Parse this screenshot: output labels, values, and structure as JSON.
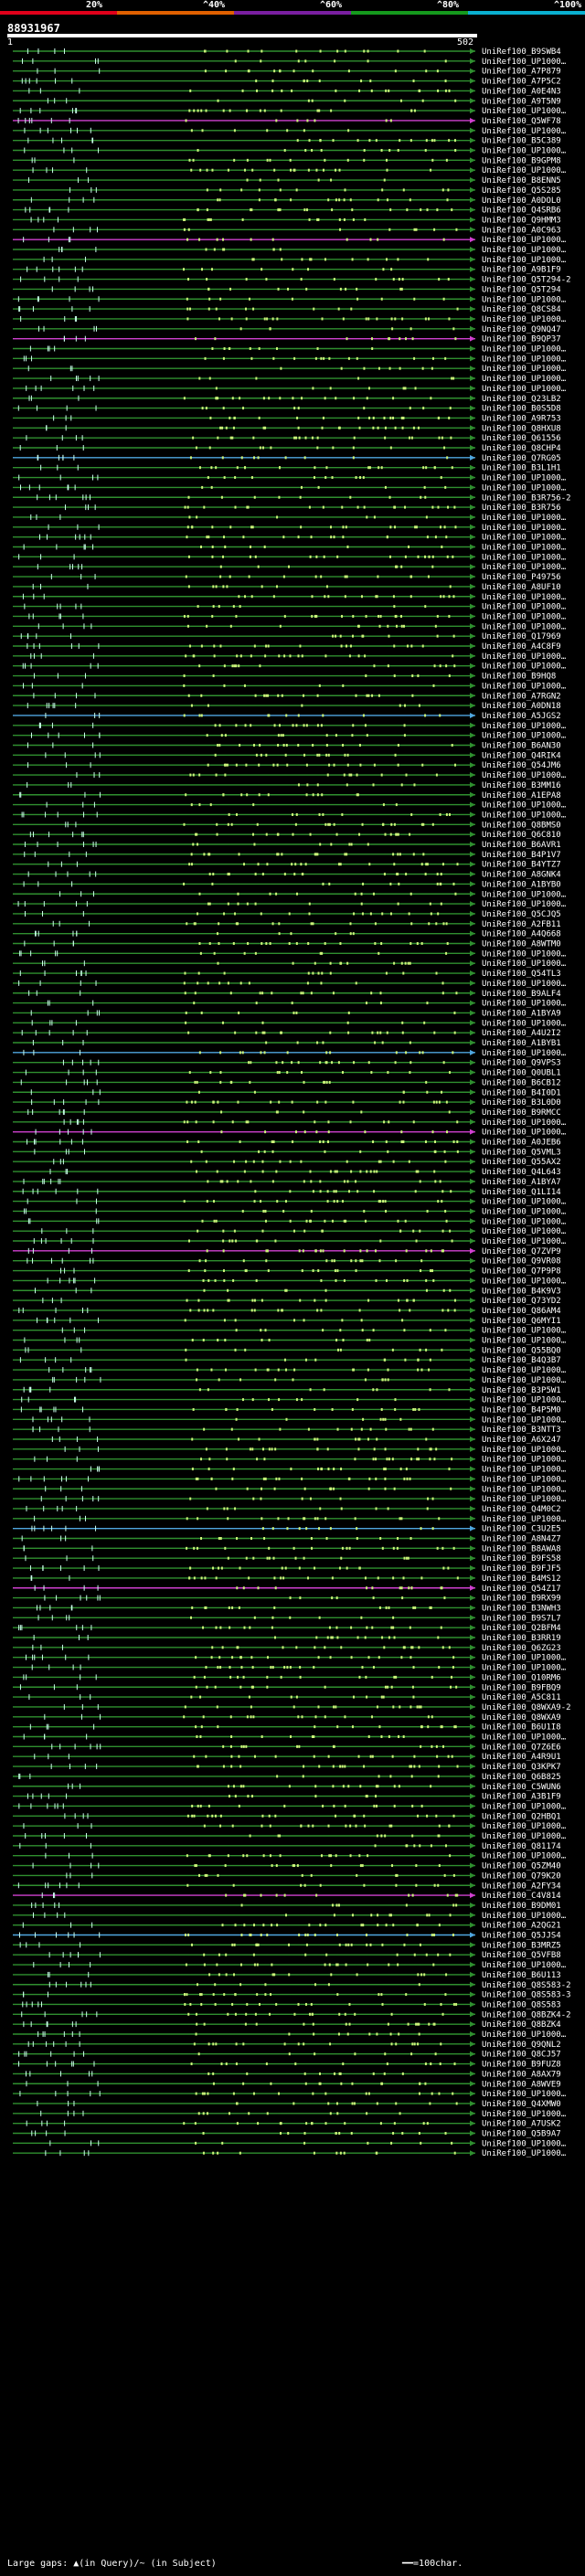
{
  "legend": {
    "ticks": [
      {
        "label": "20%",
        "color": "#e0001a"
      },
      {
        "label": "^40%",
        "color": "#e06000"
      },
      {
        "label": "^60%",
        "color": "#7a1fa0"
      },
      {
        "label": "^80%",
        "color": "#159a1d"
      },
      {
        "label": "^100%",
        "color": "#0ab0d0"
      }
    ]
  },
  "query": {
    "id": "88931967",
    "start": "1",
    "end": "502"
  },
  "colors": {
    "hit_line": "#2f8f2f",
    "long_gap": "#d040d0",
    "blue_line": "#4fa6df",
    "tick": "#ccf27a",
    "bg": "#000000"
  },
  "hits": [
    "UniRef100_B9SWB4",
    "UniRef100_UP1000…",
    "UniRef100_A7P879",
    "UniRef100_A7P5C2",
    "UniRef100_A0E4N3",
    "UniRef100_A9T5N9",
    "UniRef100_UP1000…",
    "UniRef100_Q5WF78",
    "UniRef100_UP1000…",
    "UniRef100_B5C389",
    "UniRef100_UP1000…",
    "UniRef100_B9GPM8",
    "UniRef100_UP1000…",
    "UniRef100_B8ENN5",
    "UniRef100_Q5S285",
    "UniRef100_A0DOL0",
    "UniRef100_Q4SRB6",
    "UniRef100_Q9HMM3",
    "UniRef100_A0C963",
    "UniRef100_UP1000…",
    "UniRef100_UP1000…",
    "UniRef100_UP1000…",
    "UniRef100_A9B1F9",
    "UniRef100_Q5T294-2",
    "UniRef100_Q5T294",
    "UniRef100_UP1000…",
    "UniRef100_Q8CS84",
    "UniRef100_UP1000…",
    "UniRef100_Q9NQ47",
    "UniRef100_B9QP37",
    "UniRef100_UP1000…",
    "UniRef100_UP1000…",
    "UniRef100_UP1000…",
    "UniRef100_UP1000…",
    "UniRef100_UP1000…",
    "UniRef100_Q23LB2",
    "UniRef100_B0S5D8",
    "UniRef100_A9R753",
    "UniRef100_Q8HXU8",
    "UniRef100_Q61556",
    "UniRef100_Q8CHP4",
    "UniRef100_Q7RG05",
    "UniRef100_B3L1H1",
    "UniRef100_UP1000…",
    "UniRef100_UP1000…",
    "UniRef100_B3R756-2",
    "UniRef100_B3R756",
    "UniRef100_UP1000…",
    "UniRef100_UP1000…",
    "UniRef100_UP1000…",
    "UniRef100_UP1000…",
    "UniRef100_UP1000…",
    "UniRef100_UP1000…",
    "UniRef100_P49756",
    "UniRef100_A8UF10",
    "UniRef100_UP1000…",
    "UniRef100_UP1000…",
    "UniRef100_UP1000…",
    "UniRef100_UP1000…",
    "UniRef100_Q17969",
    "UniRef100_A4C8F9",
    "UniRef100_UP1000…",
    "UniRef100_UP1000…",
    "UniRef100_B9HQ8",
    "UniRef100_UP1000…",
    "UniRef100_A7RGN2",
    "UniRef100_A0DN18",
    "UniRef100_A5JGS2",
    "UniRef100_UP1000…",
    "UniRef100_UP1000…",
    "UniRef100_B6AN30",
    "UniRef100_Q4RIK4",
    "UniRef100_Q54JM6",
    "UniRef100_UP1000…",
    "UniRef100_B3MM16",
    "UniRef100_A1EPA8",
    "UniRef100_UP1000…",
    "UniRef100_UP1000…",
    "UniRef100_Q8BMS0",
    "UniRef100_Q6C810",
    "UniRef100_B6AVR1",
    "UniRef100_B4P1V7",
    "UniRef100_B4YTZ7",
    "UniRef100_A8GNK4",
    "UniRef100_A1BYB0",
    "UniRef100_UP1000…",
    "UniRef100_UP1000…",
    "UniRef100_Q5CJQ5",
    "UniRef100_A2FB11",
    "UniRef100_A4Q668",
    "UniRef100_A8WTM0",
    "UniRef100_UP1000…",
    "UniRef100_UP1000…",
    "UniRef100_Q54TL3",
    "UniRef100_UP1000…",
    "UniRef100_B9ALF4",
    "UniRef100_UP1000…",
    "UniRef100_A1BYA9",
    "UniRef100_UP1000…",
    "UniRef100_A4U2I2",
    "UniRef100_A1BYB1",
    "UniRef100_UP1000…",
    "UniRef100_Q9VPS3",
    "UniRef100_Q0UBL1",
    "UniRef100_B6CB12",
    "UniRef100_B4I0D1",
    "UniRef100_B3L0D0",
    "UniRef100_B9RMCC",
    "UniRef100_UP1000…",
    "UniRef100_UP1000…",
    "UniRef100_A0JEB6",
    "UniRef100_Q5VML3",
    "UniRef100_Q55AX2",
    "UniRef100_Q4L643",
    "UniRef100_A1BYA7",
    "UniRef100_Q1LI14",
    "UniRef100_UP1000…",
    "UniRef100_UP1000…",
    "UniRef100_UP1000…",
    "UniRef100_UP1000…",
    "UniRef100_UP1000…",
    "UniRef100_Q7ZVP9",
    "UniRef100_Q9VR08",
    "UniRef100_Q7P9P8",
    "UniRef100_UP1000…",
    "UniRef100_B4K9V3",
    "UniRef100_Q73YD2",
    "UniRef100_Q86AM4",
    "UniRef100_Q6MYI1",
    "UniRef100_UP1000…",
    "UniRef100_UP1000…",
    "UniRef100_Q55BQ0",
    "UniRef100_B4Q3B7",
    "UniRef100_UP1000…",
    "UniRef100_UP1000…",
    "UniRef100_B3P5W1",
    "UniRef100_UP1000…",
    "UniRef100_B4P5M0",
    "UniRef100_UP1000…",
    "UniRef100_B3NTT3",
    "UniRef100_A6X247",
    "UniRef100_UP1000…",
    "UniRef100_UP1000…",
    "UniRef100_UP1000…",
    "UniRef100_UP1000…",
    "UniRef100_UP1000…",
    "UniRef100_UP1000…",
    "UniRef100_Q4M0C2",
    "UniRef100_UP1000…",
    "UniRef100_C3U2E5",
    "UniRef100_A8N4Z7",
    "UniRef100_B8AWA8",
    "UniRef100_B9FS58",
    "UniRef100_B9FJF5",
    "UniRef100_B4MS12",
    "UniRef100_Q54Z17",
    "UniRef100_B9RX99",
    "UniRef100_B3NWH3",
    "UniRef100_B9S7L7",
    "UniRef100_Q2BFM4",
    "UniRef100_B3RR19",
    "UniRef100_Q6ZG23",
    "UniRef100_UP1000…",
    "UniRef100_UP1000…",
    "UniRef100_Q10RM6",
    "UniRef100_B9FBQ9",
    "UniRef100_A5C811",
    "UniRef100_Q8WXA9-2",
    "UniRef100_Q8WXA9",
    "UniRef100_B6U1I8",
    "UniRef100_UP1000…",
    "UniRef100_Q7Z6E6",
    "UniRef100_A4R9U1",
    "UniRef100_Q3KPK7",
    "UniRef100_Q6B825",
    "UniRef100_C5WUN6",
    "UniRef100_A3B1F9",
    "UniRef100_UP1000…",
    "UniRef100_Q2HBQ1",
    "UniRef100_UP1000…",
    "UniRef100_UP1000…",
    "UniRef100_Q81174",
    "UniRef100_UP1000…",
    "UniRef100_Q5ZM40",
    "UniRef100_Q79K20",
    "UniRef100_A2FY34",
    "UniRef100_C4V814",
    "UniRef100_B9DM01",
    "UniRef100_UP1000…",
    "UniRef100_A2QG21",
    "UniRef100_Q5JJS4",
    "UniRef100_B3MRZ5",
    "UniRef100_Q5VFB8",
    "UniRef100_UP1000…",
    "UniRef100_B6U113",
    "UniRef100_Q8S583-2",
    "UniRef100_Q8S583-3",
    "UniRef100_Q8S583",
    "UniRef100_Q8BZK4-2",
    "UniRef100_Q8BZK4",
    "UniRef100_UP1000…",
    "UniRef100_Q9QNL2",
    "UniRef100_Q8CJ57",
    "UniRef100_B9FUZ8",
    "UniRef100_A8AX79",
    "UniRef100_A8WVE9",
    "UniRef100_UP1000…",
    "UniRef100_Q4XMW0",
    "UniRef100_UP1000…",
    "UniRef100_A7USK2",
    "UniRef100_Q5B9A7",
    "UniRef100_UP1000…",
    "UniRef100_UP1000…"
  ],
  "footer": {
    "left": "Large gaps: ▲(in Query)/~ (in Subject)",
    "right": "━━=100char."
  }
}
